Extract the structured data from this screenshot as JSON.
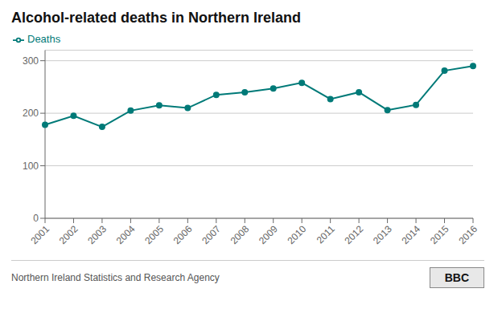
{
  "chart_data": {
    "type": "line",
    "title": "Alcohol-related deaths in Northern Ireland",
    "categories": [
      "2001",
      "2002",
      "2003",
      "2004",
      "2005",
      "2006",
      "2007",
      "2008",
      "2009",
      "2010",
      "2011",
      "2012",
      "2013",
      "2014",
      "2015",
      "2016"
    ],
    "series": [
      {
        "name": "Deaths",
        "color": "#007A78",
        "marker": "circle",
        "values": [
          178,
          195,
          174,
          205,
          215,
          210,
          235,
          240,
          247,
          258,
          227,
          240,
          206,
          216,
          281,
          290
        ]
      }
    ],
    "ylim": [
      0,
      320
    ],
    "yticks": [
      0,
      100,
      200,
      300
    ],
    "grid": true,
    "legend": "upper left",
    "annotations": [
      "Northern Ireland Statistics and Research Agency",
      "BBC"
    ]
  }
}
